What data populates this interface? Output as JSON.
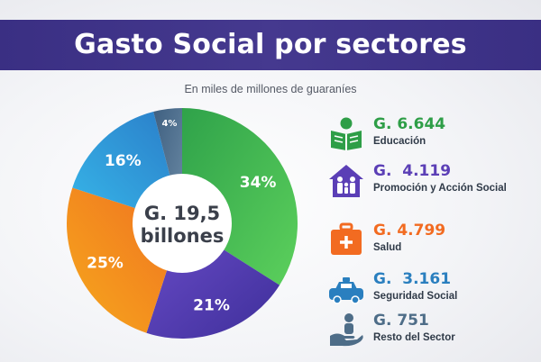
{
  "header": {
    "title": "Gasto Social por sectores"
  },
  "subtitle": "En miles de millones de guaraníes",
  "center": {
    "line1": "G. 19,5",
    "line2": "billones"
  },
  "chart_data": {
    "type": "pie",
    "title": "Gasto Social por sectores",
    "subtitle": "En miles de millones de guaraníes",
    "unit": "G.",
    "total_label": "G. 19,5 billones",
    "slices": [
      {
        "label": "Educación",
        "value": 6644,
        "value_label": "G. 6.644",
        "percent": 34,
        "percent_label": "34%",
        "color": "#2bb34a"
      },
      {
        "label": "Promoción y Acción Social",
        "value": 4119,
        "value_label": "G.  4.119",
        "percent": 21,
        "percent_label": "21%",
        "color": "#5b3fb6"
      },
      {
        "label": "Salud",
        "value": 4799,
        "value_label": "G. 4.799",
        "percent": 25,
        "percent_label": "25%",
        "color": "#f7941d"
      },
      {
        "label": "Seguridad Social",
        "value": 3161,
        "value_label": "G.  3.161",
        "percent": 16,
        "percent_label": "16%",
        "color": "#2a8fd6"
      },
      {
        "label": "Resto del Sector",
        "value": 751,
        "value_label": "G. 751",
        "percent": 4,
        "percent_label": "4%",
        "color": "#4a6b8a"
      }
    ]
  },
  "legend": {
    "items": [
      {
        "value": "G. 6.644",
        "label": "Educación",
        "color": "#2e9e47",
        "icon": "education-icon"
      },
      {
        "value": "G.  4.119",
        "label": "Promoción y Acción Social",
        "color": "#5b3fb6",
        "icon": "family-house-icon"
      },
      {
        "value": "G. 4.799",
        "label": "Salud",
        "color": "#f26b21",
        "icon": "medical-kit-icon"
      },
      {
        "value": "G.  3.161",
        "label": "Seguridad Social",
        "color": "#2a7fbf",
        "icon": "police-car-icon"
      },
      {
        "value": "G. 751",
        "label": "Resto del Sector",
        "color": "#4e6d88",
        "icon": "hand-person-icon"
      }
    ]
  }
}
